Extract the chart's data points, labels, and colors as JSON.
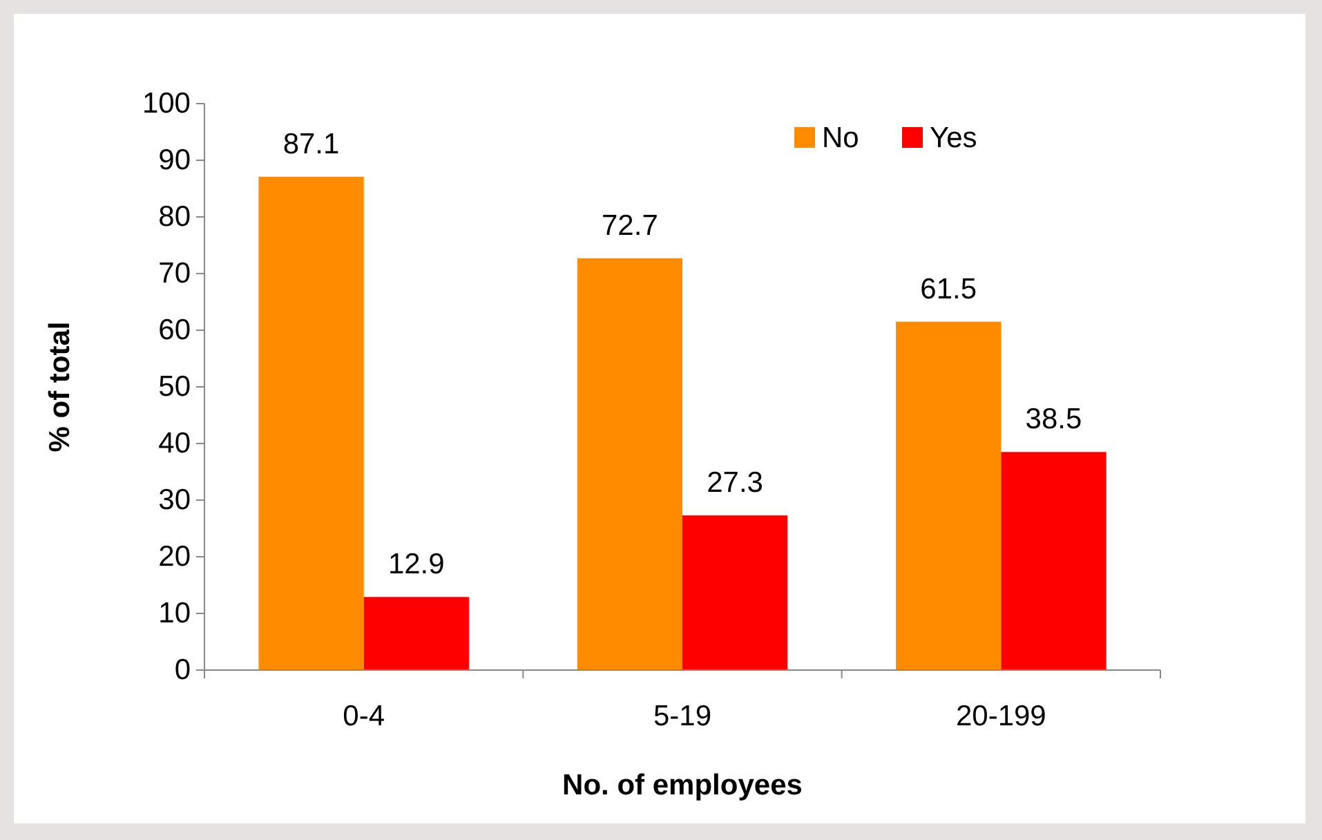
{
  "chart_data": {
    "type": "bar",
    "xlabel": "No. of employees",
    "ylabel": "% of total",
    "categories": [
      "0-4",
      "5-19",
      "20-199"
    ],
    "series": [
      {
        "name": "No",
        "color": "#ff8c00",
        "values": [
          87.1,
          72.7,
          61.5
        ]
      },
      {
        "name": "Yes",
        "color": "#ff0000",
        "values": [
          12.9,
          27.3,
          38.5
        ]
      }
    ],
    "ylim": [
      0,
      100
    ],
    "yticks": [
      0,
      10,
      20,
      30,
      40,
      50,
      60,
      70,
      80,
      90,
      100
    ],
    "grid": false,
    "legend": "top right",
    "data_labels": true
  }
}
